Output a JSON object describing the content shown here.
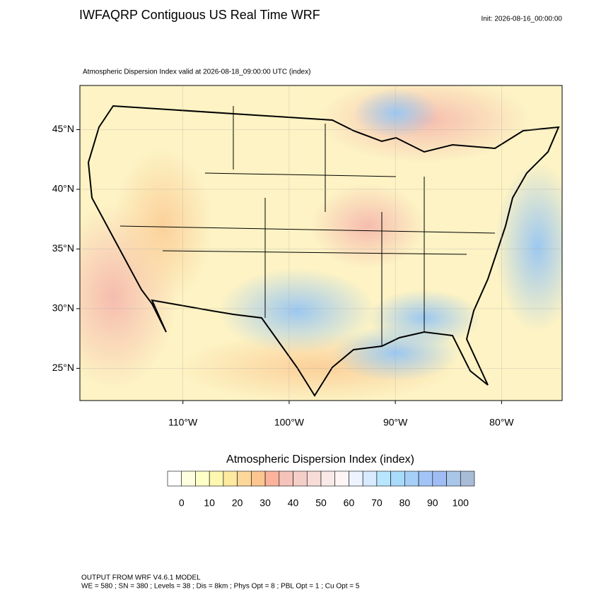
{
  "header": {
    "title": "IWFAQRP Contiguous US Real Time WRF",
    "init": "Init: 2026-08-16_00:00:00"
  },
  "map": {
    "subtitle": "Atmospheric Dispersion Index valid at 2026-08-18_09:00:00 UTC   (index)",
    "lat_range": [
      22.3,
      48.7
    ],
    "lon_range": [
      -119.7,
      -74.3
    ],
    "lat_ticks": [
      {
        "value": 45,
        "label": "45°N"
      },
      {
        "value": 40,
        "label": "40°N"
      },
      {
        "value": 35,
        "label": "35°N"
      },
      {
        "value": 30,
        "label": "30°N"
      },
      {
        "value": 25,
        "label": "25°N"
      }
    ],
    "lon_ticks": [
      {
        "value": -110,
        "label": "110°W"
      },
      {
        "value": -100,
        "label": "100°W"
      },
      {
        "value": -90,
        "label": "90°W"
      },
      {
        "value": -80,
        "label": "80°W"
      }
    ]
  },
  "colorbar": {
    "title": "Atmospheric Dispersion Index  (index)",
    "range": [
      -5,
      105
    ],
    "colors": [
      "#ffffff",
      "#ffffe0",
      "#ffffc8",
      "#fdf7b0",
      "#fde9a0",
      "#fdd79a",
      "#fcc690",
      "#fbb39b",
      "#f6c3bb",
      "#f4cfc8",
      "#f7dcd7",
      "#faeae7",
      "#fff5f5",
      "#eef4ff",
      "#d8eafd",
      "#b8e6ff",
      "#a8dafa",
      "#a6cff8",
      "#a3c4f7",
      "#9fbcf4",
      "#a9c6e8",
      "#a8bcd8"
    ],
    "ticks": [
      0,
      10,
      20,
      30,
      40,
      50,
      60,
      70,
      80,
      90,
      100
    ]
  },
  "footer": {
    "line1": "OUTPUT FROM WRF V4.6.1 MODEL",
    "line2": "WE = 580 ; SN = 380 ; Levels = 38 ; Dis = 8km ; Phys Opt = 8 ; PBL Opt = 1 ; Cu Opt = 5"
  }
}
